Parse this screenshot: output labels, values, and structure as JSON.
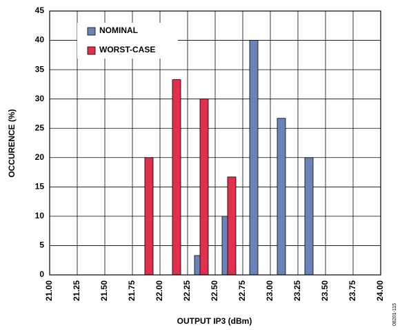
{
  "chart_data": {
    "type": "bar",
    "x_label": "OUTPUT IP3 (dBm)",
    "y_label": "OCCURENCE (%)",
    "note": "08201-115",
    "series": [
      {
        "name": "NOMINAL",
        "color": "#6a84b8",
        "x": [
          22.35,
          22.6,
          22.85,
          23.1,
          23.35
        ],
        "values": [
          3.3,
          10,
          40,
          26.7,
          20
        ]
      },
      {
        "name": "WORST-CASE",
        "color": "#e0304e",
        "x": [
          21.9,
          22.15,
          22.4,
          22.65
        ],
        "values": [
          20,
          33.3,
          30,
          16.7
        ]
      }
    ],
    "xlim": [
      21,
      24
    ],
    "xticks": [
      {
        "value": 21,
        "label": "21.00"
      },
      {
        "value": 21.25,
        "label": "21.25"
      },
      {
        "value": 21.5,
        "label": "21.50"
      },
      {
        "value": 21.75,
        "label": "21.75"
      },
      {
        "value": 22,
        "label": "22.00"
      },
      {
        "value": 22.25,
        "label": "22.25"
      },
      {
        "value": 22.5,
        "label": "22.50"
      },
      {
        "value": 22.75,
        "label": "22.75"
      },
      {
        "value": 23,
        "label": "23.00"
      },
      {
        "value": 23.25,
        "label": "23.25"
      },
      {
        "value": 23.5,
        "label": "23.50"
      },
      {
        "value": 23.75,
        "label": "23.75"
      },
      {
        "value": 24,
        "label": "24.00"
      }
    ],
    "ylim": [
      0,
      45
    ],
    "yticks": [
      0,
      5,
      10,
      15,
      20,
      25,
      30,
      35,
      40,
      45
    ],
    "grid": true,
    "legend": "upper-left"
  }
}
